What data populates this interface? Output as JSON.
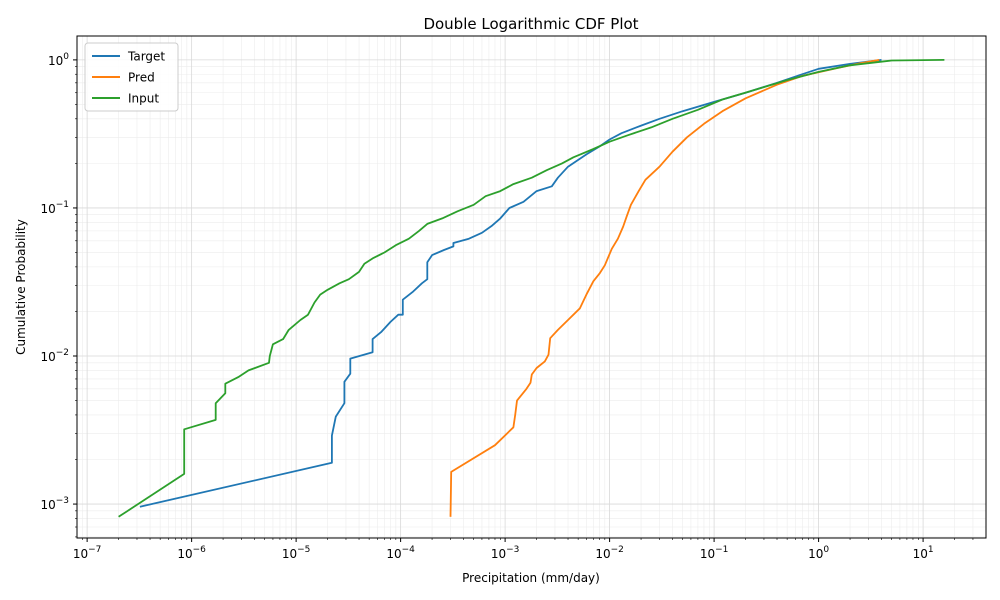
{
  "chart_data": {
    "type": "line",
    "title": "Double Logarithmic CDF Plot",
    "xlabel": "Precipitation (mm/day)",
    "ylabel": "Cumulative Probability",
    "xscale": "log",
    "yscale": "log",
    "xlim": [
      8e-08,
      40
    ],
    "ylim": [
      0.00059,
      1.45
    ],
    "x_ticks": [
      {
        "value": 1e-07,
        "base": "10",
        "exp": "−7"
      },
      {
        "value": 1e-06,
        "base": "10",
        "exp": "−6"
      },
      {
        "value": 1e-05,
        "base": "10",
        "exp": "−5"
      },
      {
        "value": 0.0001,
        "base": "10",
        "exp": "−4"
      },
      {
        "value": 0.001,
        "base": "10",
        "exp": "−3"
      },
      {
        "value": 0.01,
        "base": "10",
        "exp": "−2"
      },
      {
        "value": 0.1,
        "base": "10",
        "exp": "−1"
      },
      {
        "value": 1,
        "base": "10",
        "exp": "0"
      },
      {
        "value": 10,
        "base": "10",
        "exp": "1"
      }
    ],
    "y_ticks": [
      {
        "value": 0.001,
        "base": "10",
        "exp": "−3"
      },
      {
        "value": 0.01,
        "base": "10",
        "exp": "−2"
      },
      {
        "value": 0.1,
        "base": "10",
        "exp": "−1"
      },
      {
        "value": 1,
        "base": "10",
        "exp": "0"
      }
    ],
    "grid": true,
    "legend_position": "top-left",
    "series": [
      {
        "name": "Target",
        "color": "#1f77b4",
        "points": [
          [
            3.2e-07,
            0.00096
          ],
          [
            2.2e-05,
            0.0019
          ],
          [
            2.2e-05,
            0.0029
          ],
          [
            2.4e-05,
            0.0039
          ],
          [
            2.9e-05,
            0.0048
          ],
          [
            2.9e-05,
            0.0067
          ],
          [
            3.3e-05,
            0.0076
          ],
          [
            3.3e-05,
            0.0096
          ],
          [
            5.4e-05,
            0.0106
          ],
          [
            5.4e-05,
            0.013
          ],
          [
            6.5e-05,
            0.0145
          ],
          [
            8e-05,
            0.017
          ],
          [
            9.5e-05,
            0.019
          ],
          [
            0.000105,
            0.019
          ],
          [
            0.000105,
            0.024
          ],
          [
            0.00013,
            0.027
          ],
          [
            0.00016,
            0.031
          ],
          [
            0.00018,
            0.033
          ],
          [
            0.00018,
            0.043
          ],
          [
            0.0002,
            0.048
          ],
          [
            0.00026,
            0.052
          ],
          [
            0.00032,
            0.055
          ],
          [
            0.00032,
            0.058
          ],
          [
            0.00045,
            0.062
          ],
          [
            0.0006,
            0.068
          ],
          [
            0.00075,
            0.076
          ],
          [
            0.0009,
            0.085
          ],
          [
            0.0011,
            0.1
          ],
          [
            0.0015,
            0.11
          ],
          [
            0.002,
            0.13
          ],
          [
            0.0028,
            0.14
          ],
          [
            0.0032,
            0.16
          ],
          [
            0.004,
            0.19
          ],
          [
            0.006,
            0.23
          ],
          [
            0.008,
            0.26
          ],
          [
            0.01,
            0.29
          ],
          [
            0.013,
            0.32
          ],
          [
            0.02,
            0.36
          ],
          [
            0.03,
            0.4
          ],
          [
            0.05,
            0.45
          ],
          [
            0.1,
            0.52
          ],
          [
            0.2,
            0.6
          ],
          [
            0.4,
            0.7
          ],
          [
            0.7,
            0.8
          ],
          [
            1,
            0.87
          ],
          [
            2,
            0.94
          ],
          [
            4,
            1.0
          ]
        ]
      },
      {
        "name": "Pred",
        "color": "#ff7f0e",
        "points": [
          [
            0.0003,
            0.00082
          ],
          [
            0.000305,
            0.00165
          ],
          [
            0.0008,
            0.0025
          ],
          [
            0.0012,
            0.0033
          ],
          [
            0.00125,
            0.004
          ],
          [
            0.0013,
            0.005
          ],
          [
            0.0016,
            0.006
          ],
          [
            0.00175,
            0.0066
          ],
          [
            0.0018,
            0.0075
          ],
          [
            0.002,
            0.0083
          ],
          [
            0.0024,
            0.0092
          ],
          [
            0.0026,
            0.0102
          ],
          [
            0.0027,
            0.0132
          ],
          [
            0.0032,
            0.015
          ],
          [
            0.004,
            0.0175
          ],
          [
            0.0052,
            0.021
          ],
          [
            0.006,
            0.026
          ],
          [
            0.007,
            0.032
          ],
          [
            0.008,
            0.036
          ],
          [
            0.009,
            0.041
          ],
          [
            0.0105,
            0.053
          ],
          [
            0.012,
            0.062
          ],
          [
            0.0135,
            0.075
          ],
          [
            0.0145,
            0.087
          ],
          [
            0.016,
            0.105
          ],
          [
            0.019,
            0.13
          ],
          [
            0.022,
            0.155
          ],
          [
            0.03,
            0.19
          ],
          [
            0.04,
            0.24
          ],
          [
            0.055,
            0.3
          ],
          [
            0.08,
            0.37
          ],
          [
            0.12,
            0.45
          ],
          [
            0.2,
            0.55
          ],
          [
            0.4,
            0.68
          ],
          [
            0.7,
            0.78
          ],
          [
            1.5,
            0.88
          ],
          [
            2.5,
            0.95
          ],
          [
            3.8,
            1.0
          ]
        ]
      },
      {
        "name": "Input",
        "color": "#2ca02c",
        "points": [
          [
            2e-07,
            0.00082
          ],
          [
            8.5e-07,
            0.0016
          ],
          [
            8.5e-07,
            0.0032
          ],
          [
            1.7e-06,
            0.0037
          ],
          [
            1.7e-06,
            0.0048
          ],
          [
            2.1e-06,
            0.0056
          ],
          [
            2.1e-06,
            0.0065
          ],
          [
            2.8e-06,
            0.0072
          ],
          [
            3.5e-06,
            0.008
          ],
          [
            5.5e-06,
            0.009
          ],
          [
            5.6e-06,
            0.01
          ],
          [
            6e-06,
            0.012
          ],
          [
            7.5e-06,
            0.013
          ],
          [
            8.5e-06,
            0.015
          ],
          [
            1.1e-05,
            0.0175
          ],
          [
            1.3e-05,
            0.019
          ],
          [
            1.5e-05,
            0.023
          ],
          [
            1.7e-05,
            0.026
          ],
          [
            2e-05,
            0.028
          ],
          [
            2.6e-05,
            0.031
          ],
          [
            3.2e-05,
            0.033
          ],
          [
            4e-05,
            0.037
          ],
          [
            4.5e-05,
            0.042
          ],
          [
            5.5e-05,
            0.046
          ],
          [
            7e-05,
            0.05
          ],
          [
            9e-05,
            0.056
          ],
          [
            0.00012,
            0.062
          ],
          [
            0.00015,
            0.07
          ],
          [
            0.00018,
            0.078
          ],
          [
            0.00025,
            0.085
          ],
          [
            0.00035,
            0.095
          ],
          [
            0.0005,
            0.105
          ],
          [
            0.00065,
            0.12
          ],
          [
            0.0009,
            0.13
          ],
          [
            0.0012,
            0.145
          ],
          [
            0.0018,
            0.16
          ],
          [
            0.0025,
            0.18
          ],
          [
            0.0035,
            0.2
          ],
          [
            0.0045,
            0.22
          ],
          [
            0.007,
            0.25
          ],
          [
            0.01,
            0.28
          ],
          [
            0.015,
            0.31
          ],
          [
            0.025,
            0.35
          ],
          [
            0.04,
            0.4
          ],
          [
            0.07,
            0.46
          ],
          [
            0.12,
            0.54
          ],
          [
            0.25,
            0.63
          ],
          [
            0.5,
            0.73
          ],
          [
            1,
            0.83
          ],
          [
            2,
            0.92
          ],
          [
            5,
            0.99
          ],
          [
            16,
            1.0
          ]
        ]
      }
    ]
  }
}
